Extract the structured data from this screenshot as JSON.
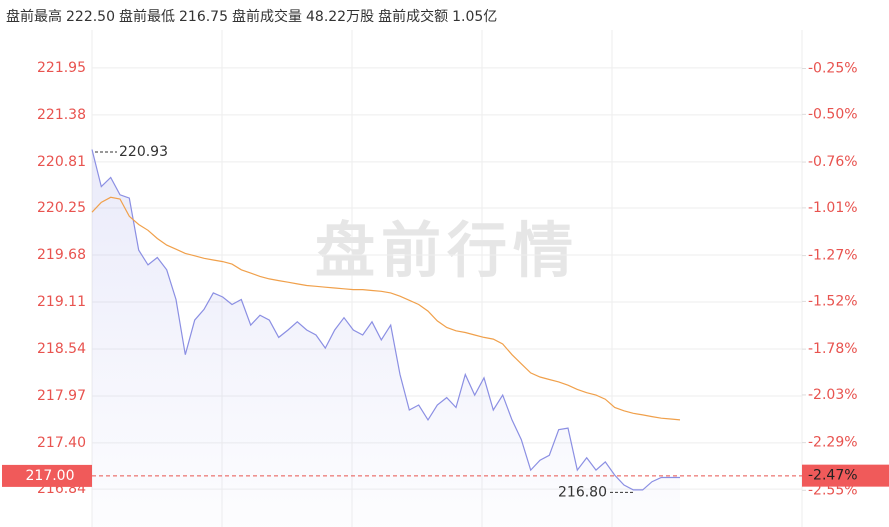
{
  "header": {
    "items": [
      {
        "label": "盘前最高",
        "value": "222.50"
      },
      {
        "label": "盘前最低",
        "value": "216.75"
      },
      {
        "label": "盘前成交量",
        "value": "48.22万股"
      },
      {
        "label": "盘前成交额",
        "value": "1.05亿"
      }
    ]
  },
  "chart_data": {
    "type": "line",
    "watermark": "盘前行情",
    "ylim": [
      216.38,
      222.41
    ],
    "yticks": [
      221.95,
      221.38,
      220.81,
      220.25,
      219.68,
      219.11,
      218.54,
      217.97,
      {
        "value": 217.4,
        "label": "217.40"
      },
      216.84
    ],
    "y2lim": [
      -2.75,
      -0.04
    ],
    "y2ticks": [
      {
        "value": -0.25,
        "label": "-0.25%"
      },
      {
        "value": -0.5,
        "label": "-0.50%"
      },
      {
        "value": -0.76,
        "label": "-0.76%"
      },
      {
        "value": -1.01,
        "label": "-1.01%"
      },
      {
        "value": -1.27,
        "label": "-1.27%"
      },
      {
        "value": -1.52,
        "label": "-1.52%"
      },
      {
        "value": -1.78,
        "label": "-1.78%"
      },
      {
        "value": -2.03,
        "label": "-2.03%"
      },
      {
        "value": -2.29,
        "label": "-2.29%"
      },
      {
        "value": -2.55,
        "label": "-2.55%"
      }
    ],
    "grid": true,
    "series": [
      {
        "color": "#8b8fe3",
        "fill": true,
        "values": [
          220.96,
          220.51,
          220.62,
          220.41,
          220.37,
          219.74,
          219.56,
          219.65,
          219.5,
          219.14,
          218.47,
          218.89,
          219.02,
          219.22,
          219.17,
          219.08,
          219.14,
          218.83,
          218.95,
          218.89,
          218.68,
          218.77,
          218.87,
          218.77,
          218.71,
          218.55,
          218.77,
          218.92,
          218.77,
          218.71,
          218.87,
          218.65,
          218.83,
          218.23,
          217.8,
          217.86,
          217.68,
          217.86,
          217.95,
          217.83,
          218.23,
          217.98,
          218.19,
          217.8,
          217.98,
          217.68,
          217.44,
          217.07,
          217.19,
          217.25,
          217.56,
          217.58,
          217.07,
          217.22,
          217.07,
          217.17,
          217.01,
          216.89,
          216.83,
          216.83,
          216.93,
          216.98,
          216.98,
          216.98
        ]
      },
      {
        "color": "#f0a04b",
        "fill": false,
        "values": [
          220.2,
          220.32,
          220.38,
          220.36,
          220.15,
          220.05,
          219.98,
          219.88,
          219.8,
          219.75,
          219.7,
          219.67,
          219.64,
          219.62,
          219.6,
          219.57,
          219.5,
          219.46,
          219.42,
          219.39,
          219.37,
          219.35,
          219.33,
          219.31,
          219.3,
          219.29,
          219.28,
          219.27,
          219.26,
          219.26,
          219.25,
          219.24,
          219.22,
          219.18,
          219.13,
          219.08,
          219.0,
          218.88,
          218.8,
          218.76,
          218.74,
          218.71,
          218.68,
          218.66,
          218.6,
          218.47,
          218.36,
          218.25,
          218.2,
          218.17,
          218.14,
          218.1,
          218.05,
          218.01,
          217.98,
          217.93,
          217.83,
          217.79,
          217.76,
          217.74,
          217.72,
          217.7,
          217.69,
          217.68
        ]
      }
    ],
    "max_label": 220.93,
    "min_label": {
      "value": 216.8,
      "label": "216.80"
    },
    "last_price": {
      "value": 217,
      "label": "217.00"
    },
    "last_change": {
      "value": -2.47,
      "label": "-2.47%"
    }
  }
}
